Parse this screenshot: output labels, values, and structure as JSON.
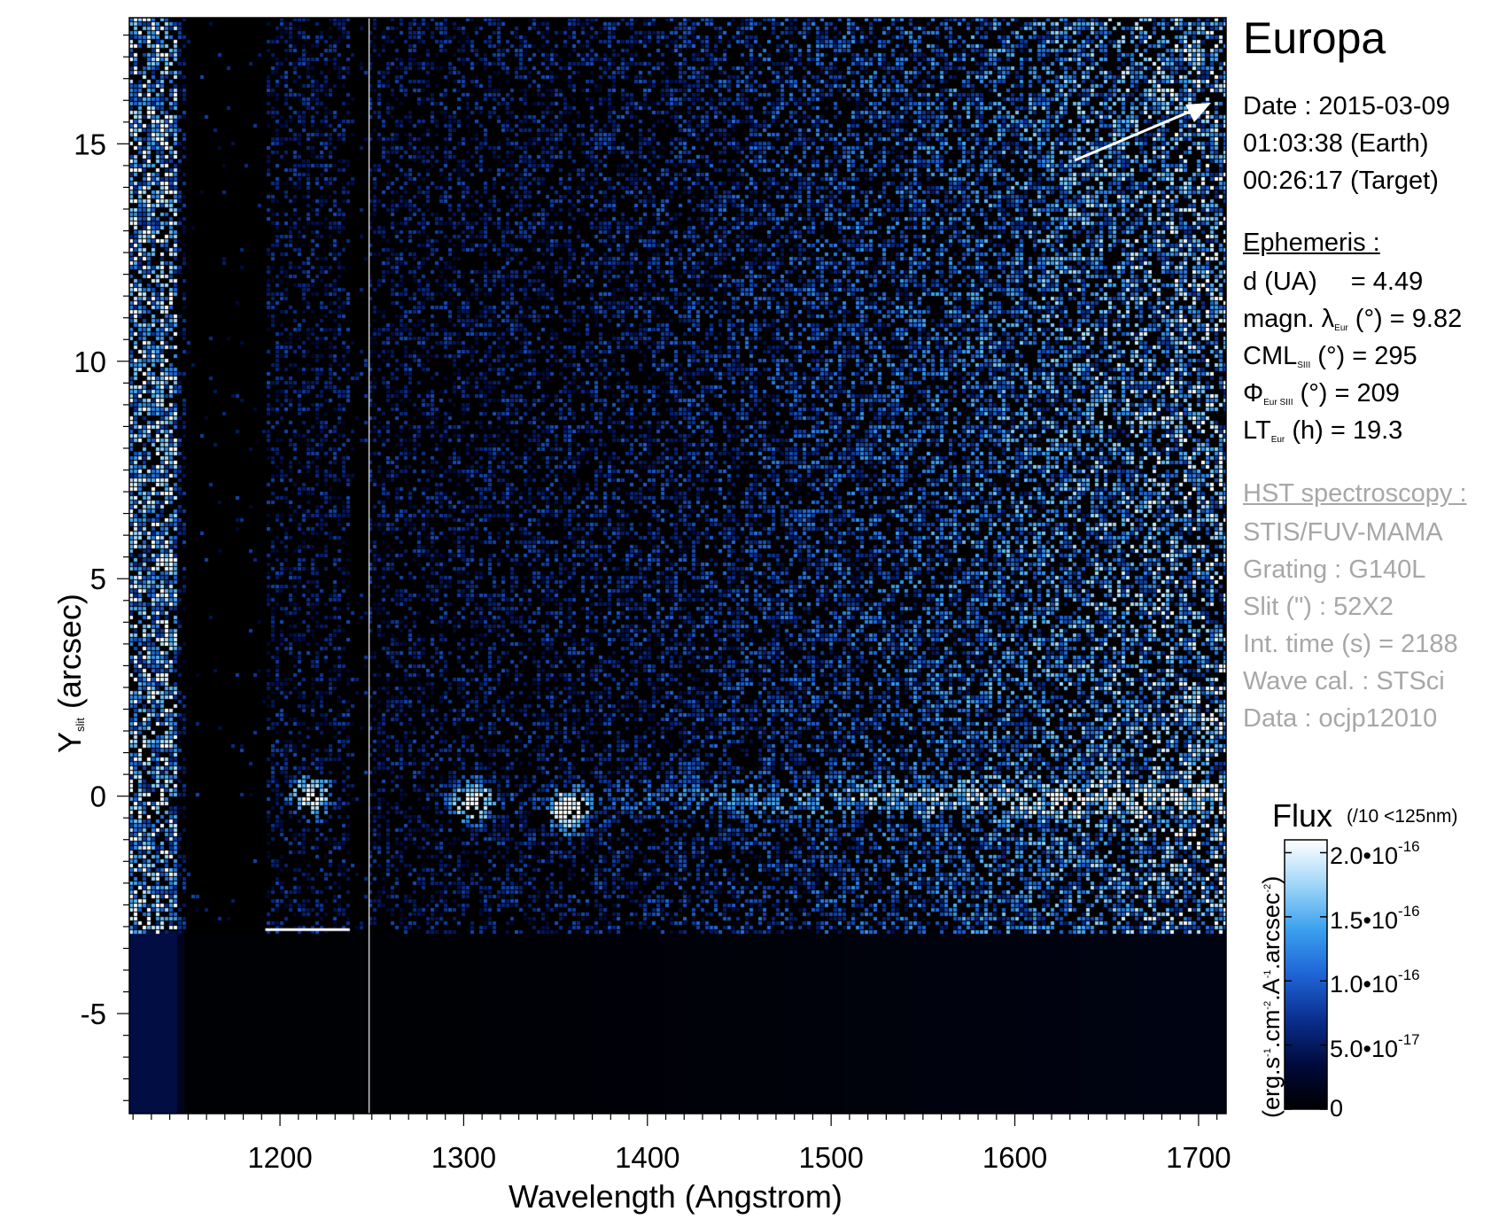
{
  "chart_data": {
    "type": "heatmap",
    "title": "Europa",
    "xlabel": "Wavelength (Angstrom)",
    "ylabel": {
      "main": "Y",
      "sub": "slit",
      "rest": " (arcsec)"
    },
    "xlim": [
      1118,
      1715
    ],
    "ylim": [
      -7.3,
      17.9
    ],
    "x_ticks": [
      1200,
      1300,
      1400,
      1500,
      1600,
      1700
    ],
    "x_tick_labels": [
      "1200",
      "1300",
      "1400",
      "1500",
      "1600",
      "1700"
    ],
    "y_ticks": [
      -5,
      0,
      5,
      10,
      15
    ],
    "y_tick_labels": [
      "-5",
      "0",
      "5",
      "10",
      "15"
    ],
    "grid": false,
    "colormap": [
      "#000000",
      "#000a3c",
      "#0a2f8f",
      "#1f64d6",
      "#3aa0ee",
      "#9fd6f7",
      "#ffffff"
    ],
    "colorbar": {
      "title": "Flux",
      "note": "(/10 <125nm)",
      "label": {
        "a": "(erg.s",
        "e1": "-1",
        "b": ".cm",
        "e2": "-2",
        "c": ".A",
        "e3": "-1",
        "d": ".arcsec",
        "e4": "-2",
        "f": ")"
      },
      "ticks": [
        {
          "value": 2e-16,
          "mant": "2.0•10",
          "exp": "-16"
        },
        {
          "value": 1.5e-16,
          "mant": "1.5•10",
          "exp": "-16"
        },
        {
          "value": 1e-16,
          "mant": "1.0•10",
          "exp": "-16"
        },
        {
          "value": 5e-17,
          "mant": "5.0•10",
          "exp": "-17"
        },
        {
          "value": 0,
          "mant": "0",
          "exp": ""
        }
      ],
      "range": [
        0,
        2.1e-16
      ]
    },
    "features": {
      "emission_row_y": 0,
      "emission_spots": [
        {
          "x": 1216,
          "y": 0.05
        },
        {
          "x": 1304,
          "y": -0.1
        },
        {
          "x": 1356,
          "y": -0.3
        }
      ],
      "bright_column_x": [
        1118,
        1144
      ],
      "dark_gap_x": [
        1148,
        1192
      ],
      "detector_edge_y": -3.1,
      "cal_line_x": 1248.5
    }
  },
  "info": {
    "title": "Europa",
    "date": "Date : 2015-03-09",
    "time_earth": "01:03:38 (Earth)",
    "time_target": "00:26:17 (Target)",
    "ephemeris_header": "Ephemeris :",
    "distance": {
      "a": "d (UA)",
      "b": "= 4.49"
    },
    "magn_lat": {
      "a": "magn. λ",
      "sub": "Eur",
      "b": " (°)  = 9.82"
    },
    "cml": {
      "a": "CML",
      "sub": "SIII",
      "b": " (°) = 295"
    },
    "phase": {
      "a": "Φ",
      "sub": "Eur SIII",
      "b": " (°) = 209"
    },
    "lt": {
      "a": "LT",
      "sub": "Eur",
      "b": " (h) = 19.3"
    },
    "hst_header": "HST spectroscopy :",
    "instrument": "STIS/FUV-MAMA",
    "grating": "Grating : G140L",
    "slit": "Slit (\") : 52X2",
    "int_time": "Int. time (s) = 2188",
    "wave_cal": "Wave cal. : STSci",
    "data_id": "Data : ocjp12010"
  }
}
